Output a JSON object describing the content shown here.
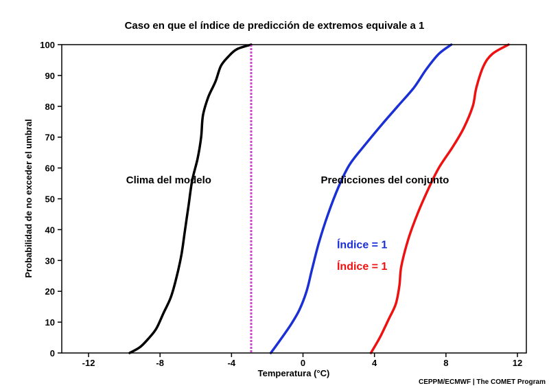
{
  "chart_data": {
    "type": "line",
    "title": "Caso en que el índice de predicción de extremos equivale a 1",
    "xlabel": "Temperatura (°C)",
    "ylabel": "Probabilidad de no exceder el umbral",
    "xlim": [
      -13.5,
      12.5
    ],
    "ylim": [
      0,
      100
    ],
    "xticks": [
      -12,
      -8,
      -4,
      0,
      4,
      8,
      12
    ],
    "yticks": [
      0,
      10,
      20,
      30,
      40,
      50,
      60,
      70,
      80,
      90,
      100
    ],
    "grid": false,
    "series": [
      {
        "color": "#000000",
        "points": [
          [
            -9.7,
            0
          ],
          [
            -9.1,
            2
          ],
          [
            -8.6,
            5
          ],
          [
            -8.2,
            8
          ],
          [
            -7.8,
            13
          ],
          [
            -7.4,
            18
          ],
          [
            -7.1,
            24
          ],
          [
            -6.8,
            32
          ],
          [
            -6.6,
            40
          ],
          [
            -6.4,
            48
          ],
          [
            -6.2,
            56
          ],
          [
            -5.9,
            63
          ],
          [
            -5.7,
            70
          ],
          [
            -5.6,
            77
          ],
          [
            -5.3,
            83
          ],
          [
            -4.9,
            88
          ],
          [
            -4.6,
            93
          ],
          [
            -4.2,
            96
          ],
          [
            -3.7,
            98.5
          ],
          [
            -2.9,
            100
          ]
        ]
      },
      {
        "color": "#1a2fd4",
        "points": [
          [
            -1.8,
            0
          ],
          [
            -1.3,
            4
          ],
          [
            -0.7,
            9
          ],
          [
            -0.2,
            14
          ],
          [
            0.2,
            20
          ],
          [
            0.5,
            27
          ],
          [
            0.9,
            36
          ],
          [
            1.4,
            45
          ],
          [
            2.0,
            54
          ],
          [
            2.6,
            61
          ],
          [
            3.4,
            67
          ],
          [
            4.4,
            74
          ],
          [
            5.3,
            80
          ],
          [
            6.2,
            86
          ],
          [
            6.9,
            92
          ],
          [
            7.6,
            97
          ],
          [
            8.3,
            100
          ]
        ]
      },
      {
        "color": "#ee1111",
        "points": [
          [
            3.8,
            0
          ],
          [
            4.3,
            5
          ],
          [
            4.8,
            11
          ],
          [
            5.2,
            16
          ],
          [
            5.4,
            22
          ],
          [
            5.5,
            28
          ],
          [
            5.9,
            37
          ],
          [
            6.4,
            45
          ],
          [
            7.0,
            53
          ],
          [
            7.6,
            60
          ],
          [
            8.4,
            67
          ],
          [
            9.0,
            73
          ],
          [
            9.5,
            80
          ],
          [
            9.7,
            86
          ],
          [
            10.1,
            93
          ],
          [
            10.6,
            97
          ],
          [
            11.5,
            100
          ]
        ]
      }
    ],
    "vline": {
      "x": -2.9,
      "color": "#cc44cc"
    },
    "annotations": [
      {
        "text": "Clima del modelo",
        "x": -9.9,
        "y": 55
      },
      {
        "text": "Predicciones del conjunto",
        "x": 1,
        "y": 55
      },
      {
        "text": "Índice = 1",
        "x": 1.9,
        "y": 34,
        "color": "#1a2fd4"
      },
      {
        "text": "Índice = 1",
        "x": 1.9,
        "y": 27,
        "color": "#ee1111"
      }
    ]
  },
  "credit": "CEPPM/ECMWF | The COMET Program"
}
